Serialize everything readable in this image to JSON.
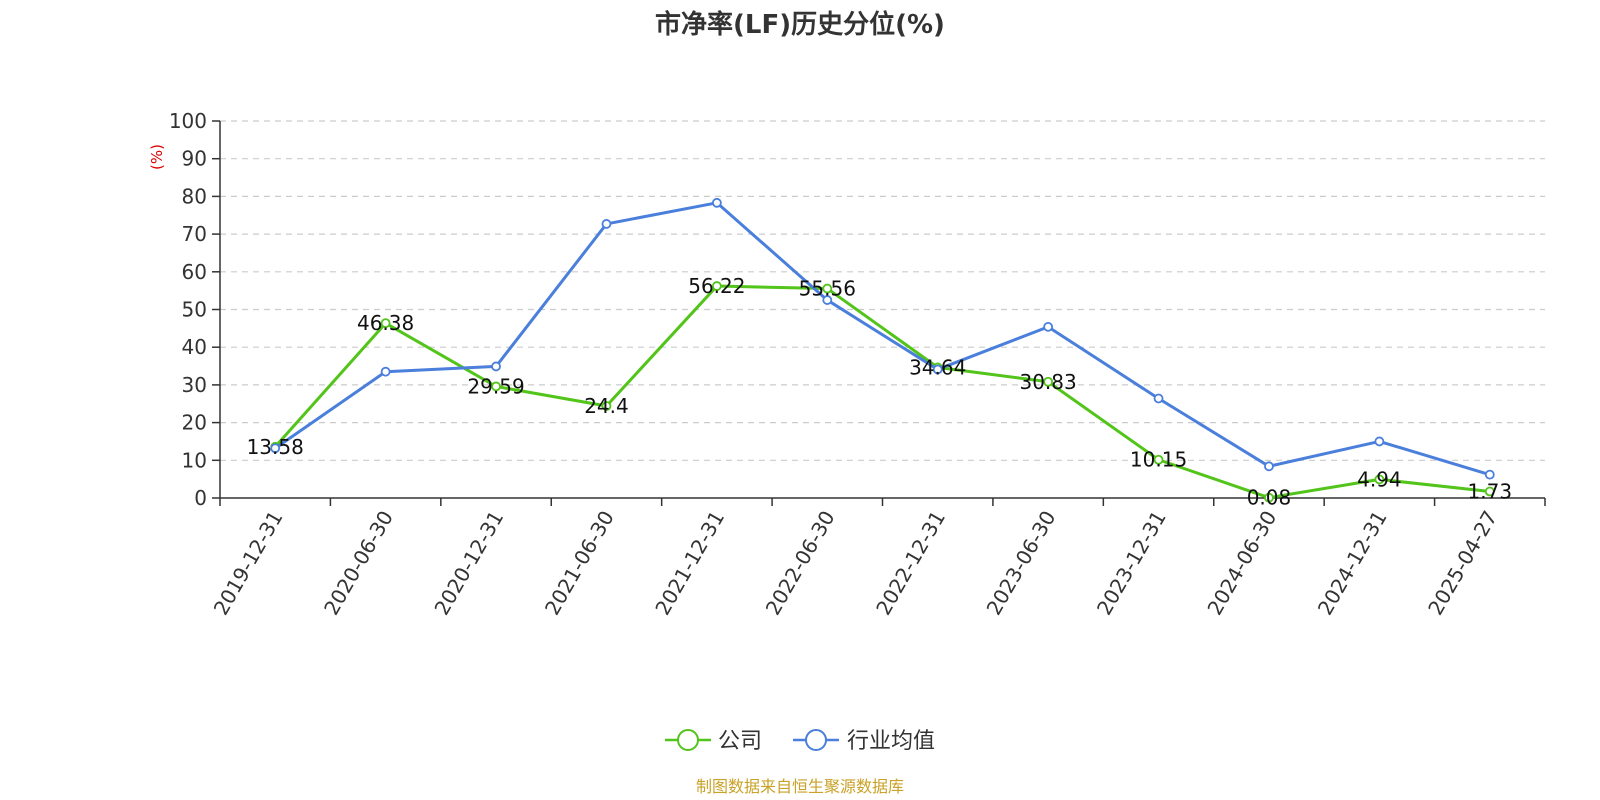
{
  "chart_data": {
    "type": "line",
    "title": "市净率(LF)历史分位(%)",
    "ylabel": "(%)",
    "ylim": [
      0,
      100
    ],
    "yticks": [
      0,
      10,
      20,
      30,
      40,
      50,
      60,
      70,
      80,
      90,
      100
    ],
    "grid": true,
    "legend_position": "bottom-center",
    "categories": [
      "2019-12-31",
      "2020-06-30",
      "2020-12-31",
      "2021-06-30",
      "2021-12-31",
      "2022-06-30",
      "2022-12-31",
      "2023-06-30",
      "2023-12-31",
      "2024-06-30",
      "2024-12-31",
      "2025-04-27"
    ],
    "series": [
      {
        "name": "公司",
        "color": "#52c41a",
        "show_labels": true,
        "values": [
          13.58,
          46.38,
          29.59,
          24.4,
          56.22,
          55.56,
          34.64,
          30.83,
          10.15,
          0.08,
          4.94,
          1.73
        ]
      },
      {
        "name": "行业均值",
        "color": "#4a7fdc",
        "show_labels": false,
        "values": [
          13.2,
          33.5,
          34.9,
          72.7,
          78.3,
          52.5,
          34.1,
          45.4,
          26.4,
          8.4,
          15.0,
          6.2
        ]
      }
    ],
    "colors": {
      "axis": "#333333",
      "grid": "#cccccc",
      "unit": "#dd0000",
      "source": "#c9a227"
    }
  },
  "footer": {
    "source": "制图数据来自恒生聚源数据库"
  }
}
